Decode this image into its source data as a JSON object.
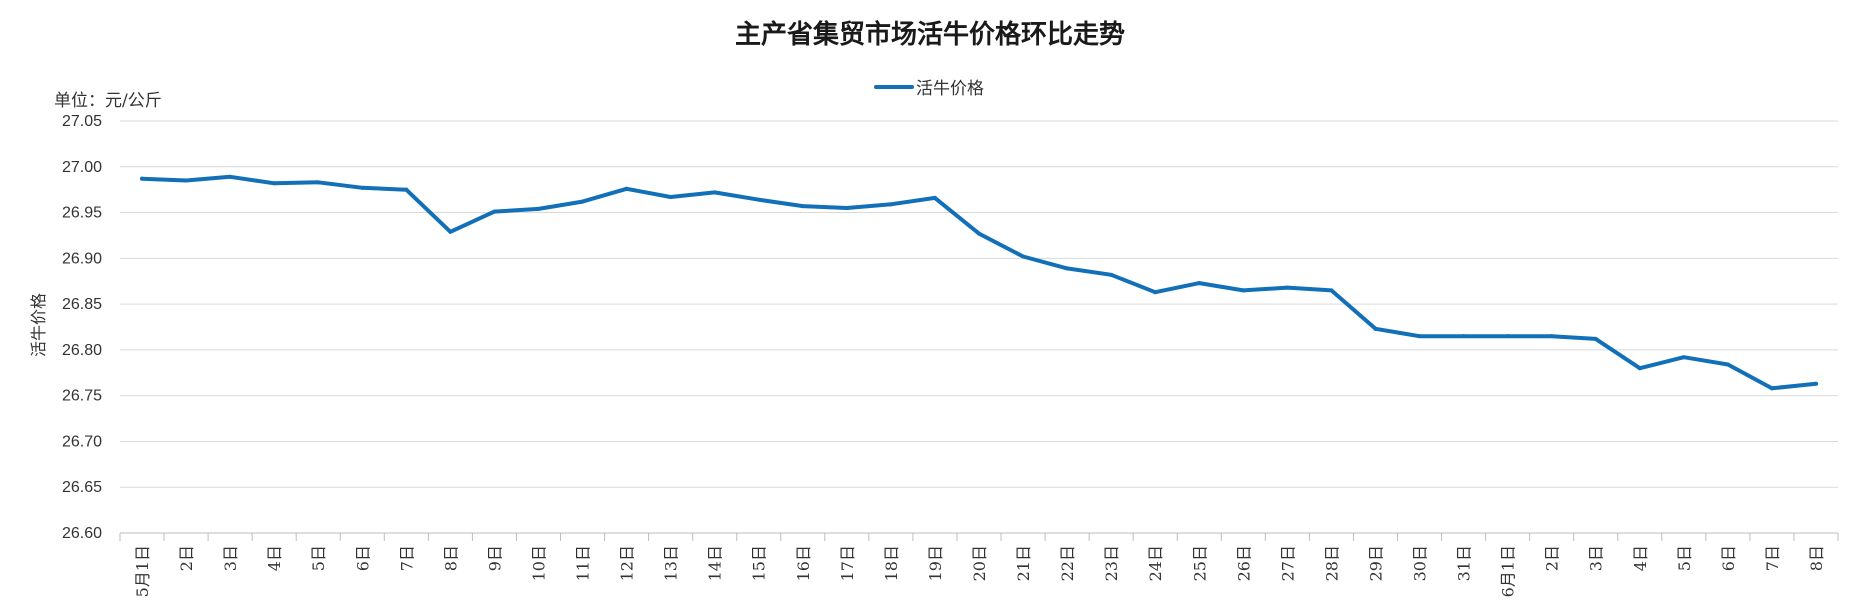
{
  "chart_data": {
    "type": "line",
    "title": "主产省集贸市场活牛价格环比走势",
    "unit": "单位：元/公斤",
    "ylabel": "活牛价格",
    "xlabel": "",
    "legend_position": "top-center",
    "grid": true,
    "ylim": [
      26.6,
      27.05
    ],
    "yticks": [
      "27.05",
      "27.00",
      "26.95",
      "26.90",
      "26.85",
      "26.80",
      "26.75",
      "26.70",
      "26.65",
      "26.60"
    ],
    "categories": [
      "5月1日",
      "2日",
      "3日",
      "4日",
      "5日",
      "6日",
      "7日",
      "8日",
      "9日",
      "10日",
      "11日",
      "12日",
      "13日",
      "14日",
      "15日",
      "16日",
      "17日",
      "18日",
      "19日",
      "20日",
      "21日",
      "22日",
      "23日",
      "24日",
      "25日",
      "26日",
      "27日",
      "28日",
      "29日",
      "30日",
      "31日",
      "6月1日",
      "2日",
      "3日",
      "4日",
      "5日",
      "6日",
      "7日",
      "8日"
    ],
    "series": [
      {
        "name": "活牛价格",
        "color": "#1170b8",
        "values": [
          26.987,
          26.985,
          26.989,
          26.982,
          26.983,
          26.977,
          26.975,
          26.929,
          26.951,
          26.954,
          26.962,
          26.976,
          26.967,
          26.972,
          26.964,
          26.957,
          26.955,
          26.959,
          26.966,
          26.927,
          26.902,
          26.889,
          26.882,
          26.863,
          26.873,
          26.865,
          26.868,
          26.865,
          26.823,
          26.815,
          26.815,
          26.815,
          26.815,
          26.812,
          26.78,
          26.792,
          26.784,
          26.758,
          26.763
        ]
      }
    ]
  }
}
